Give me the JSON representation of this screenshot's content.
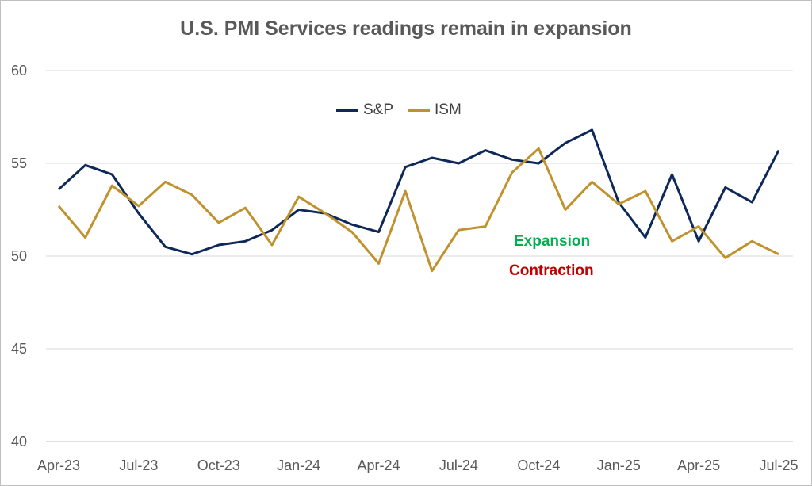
{
  "chart_data": {
    "type": "line",
    "title": "U.S. PMI Services readings remain in expansion",
    "x": [
      "Apr-23",
      "May-23",
      "Jun-23",
      "Jul-23",
      "Aug-23",
      "Sep-23",
      "Oct-23",
      "Nov-23",
      "Dec-23",
      "Jan-24",
      "Feb-24",
      "Mar-24",
      "Apr-24",
      "May-24",
      "Jun-24",
      "Jul-24",
      "Aug-24",
      "Sep-24",
      "Oct-24",
      "Nov-24",
      "Dec-24",
      "Jan-25",
      "Feb-25",
      "Mar-25",
      "Apr-25",
      "May-25",
      "Jun-25",
      "Jul-25"
    ],
    "x_tick_labels": [
      "Apr-23",
      "Jul-23",
      "Oct-23",
      "Jan-24",
      "Apr-24",
      "Jul-24",
      "Oct-24",
      "Jan-25",
      "Apr-25",
      "Jul-25"
    ],
    "y_ticks": [
      40,
      45,
      50,
      55,
      60
    ],
    "ylim": [
      40,
      60
    ],
    "grid": true,
    "legend_position": "top-center",
    "series": [
      {
        "name": "S&P",
        "color": "#0d2859",
        "values": [
          53.6,
          54.9,
          54.4,
          52.3,
          50.5,
          50.1,
          50.6,
          50.8,
          51.4,
          52.5,
          52.3,
          51.7,
          51.3,
          54.8,
          55.3,
          55.0,
          55.7,
          55.2,
          55.0,
          56.1,
          56.8,
          52.9,
          51.0,
          54.4,
          50.8,
          53.7,
          52.9,
          55.7
        ]
      },
      {
        "name": "ISM",
        "color": "#c0922e",
        "values": [
          52.7,
          51.0,
          53.8,
          52.7,
          54.0,
          53.3,
          51.8,
          52.6,
          50.6,
          53.2,
          52.3,
          51.3,
          49.6,
          53.5,
          49.2,
          51.4,
          51.6,
          54.5,
          55.8,
          52.5,
          54.0,
          52.8,
          53.5,
          50.8,
          51.6,
          49.9,
          50.8,
          50.1
        ]
      }
    ],
    "annotations": [
      {
        "text": "Expansion",
        "color": "#00b050"
      },
      {
        "text": "Contraction",
        "color": "#c00000"
      }
    ]
  }
}
